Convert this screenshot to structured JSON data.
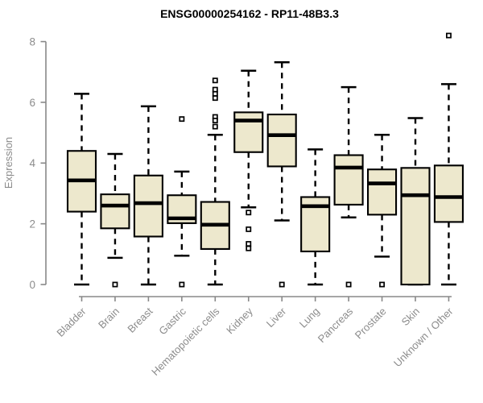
{
  "chart_data": {
    "type": "box",
    "title": "ENSG00000254162 - RP11-48B3.3",
    "ylabel": "Expression",
    "xlabel": "",
    "ylim": [
      0,
      8
    ],
    "yticks": [
      0,
      2,
      4,
      6,
      8
    ],
    "grid": false,
    "legend": false,
    "categories": [
      "Bladder",
      "Brain",
      "Breast",
      "Gastric",
      "Hematopoietic cells",
      "Kidney",
      "Liver",
      "Lung",
      "Pancreas",
      "Prostate",
      "Skin",
      "Unknown / Other"
    ],
    "series": [
      {
        "category": "Bladder",
        "whisker_low": 0,
        "q1": 2.4,
        "median": 3.43,
        "q3": 4.4,
        "whisker_high": 6.28,
        "outliers": []
      },
      {
        "category": "Brain",
        "whisker_low": 0.88,
        "q1": 1.85,
        "median": 2.6,
        "q3": 2.97,
        "whisker_high": 4.3,
        "outliers": [
          0
        ]
      },
      {
        "category": "Breast",
        "whisker_low": 0,
        "q1": 1.58,
        "median": 2.68,
        "q3": 3.59,
        "whisker_high": 5.87,
        "outliers": []
      },
      {
        "category": "Gastric",
        "whisker_low": 0.95,
        "q1": 2.02,
        "median": 2.18,
        "q3": 2.94,
        "whisker_high": 3.72,
        "outliers": [
          5.45,
          0
        ]
      },
      {
        "category": "Hematopoietic cells",
        "whisker_low": 0,
        "q1": 1.17,
        "median": 1.97,
        "q3": 2.72,
        "whisker_high": 4.93,
        "outliers": [
          6.72,
          6.42,
          6.28,
          6.14,
          5.52,
          5.4,
          5.2
        ]
      },
      {
        "category": "Kidney",
        "whisker_low": 2.54,
        "q1": 4.36,
        "median": 5.4,
        "q3": 5.67,
        "whisker_high": 7.04,
        "outliers": [
          2.37,
          1.82,
          1.34,
          1.19
        ]
      },
      {
        "category": "Liver",
        "whisker_low": 2.11,
        "q1": 3.89,
        "median": 4.92,
        "q3": 5.6,
        "whisker_high": 7.32,
        "outliers": [
          0
        ]
      },
      {
        "category": "Lung",
        "whisker_low": 0,
        "q1": 1.09,
        "median": 2.58,
        "q3": 2.88,
        "whisker_high": 4.45,
        "outliers": []
      },
      {
        "category": "Pancreas",
        "whisker_low": 2.21,
        "q1": 2.63,
        "median": 3.85,
        "q3": 4.26,
        "whisker_high": 6.5,
        "outliers": [
          0
        ]
      },
      {
        "category": "Prostate",
        "whisker_low": 0.92,
        "q1": 2.3,
        "median": 3.33,
        "q3": 3.79,
        "whisker_high": 4.93,
        "outliers": [
          0
        ]
      },
      {
        "category": "Skin",
        "whisker_low": 0,
        "q1": 0,
        "median": 2.94,
        "q3": 3.84,
        "whisker_high": 5.48,
        "outliers": []
      },
      {
        "category": "Unknown / Other",
        "whisker_low": 0,
        "q1": 2.06,
        "median": 2.88,
        "q3": 3.92,
        "whisker_high": 6.6,
        "outliers": [
          8.2
        ]
      }
    ],
    "colors": {
      "box_fill": "#EDE8CD",
      "box_stroke": "#000000",
      "median": "#000000",
      "whisker": "#000000",
      "outlier_stroke": "#000000",
      "outlier_fill": "#ffffff",
      "axis": "#888888",
      "tick_label": "#8c8c8c",
      "title": "#000000",
      "background": "#ffffff"
    }
  }
}
